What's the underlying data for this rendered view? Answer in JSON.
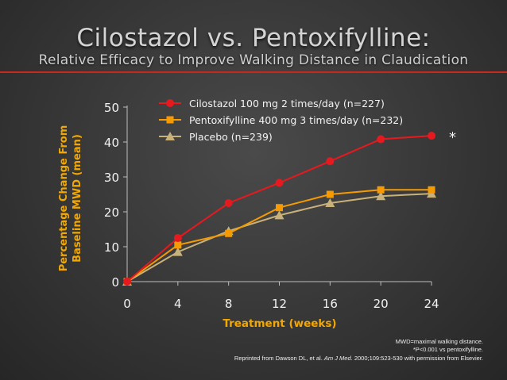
{
  "slide": {
    "title": "Cilostazol vs. Pentoxifylline:",
    "subtitle": "Relative Efficacy to Improve Walking Distance in Claudication",
    "footnote_line1": "MWD=maximal walking distance.",
    "footnote_line2": "*P<0.001 vs pentoxifylline.",
    "citation_pre": "Reprinted from Dawson DL, et al. ",
    "citation_journal": "Am J Med.",
    "citation_post": " 2000;109:523-530 with permission from Elsevier."
  },
  "colors": {
    "cilostazol": "#e8191e",
    "pentoxifylline": "#f59a00",
    "placebo": "#c9b27a",
    "axis_text": "#f2f2f2",
    "label_text": "#f2a800"
  },
  "chart_data": {
    "type": "line",
    "xlabel": "Treatment (weeks)",
    "ylabel_line1": "Percentage Change From",
    "ylabel_line2": "Baseline MWD (mean)",
    "xlim": [
      0,
      24
    ],
    "ylim": [
      0,
      50
    ],
    "xticks": [
      0,
      4,
      8,
      12,
      16,
      20,
      24
    ],
    "yticks": [
      0,
      10,
      20,
      30,
      40,
      50
    ],
    "grid": false,
    "legend_position": "top",
    "series": [
      {
        "name": "Cilostazol 100 mg 2 times/day (n=227)",
        "marker": "circle",
        "x": [
          0,
          4,
          8,
          12,
          16,
          20,
          24
        ],
        "y": [
          0,
          12.5,
          22.5,
          28.3,
          34.5,
          40.8,
          41.8
        ]
      },
      {
        "name": "Pentoxifylline 400 mg 3 times/day (n=232)",
        "marker": "square",
        "x": [
          0,
          4,
          8,
          12,
          16,
          20,
          24
        ],
        "y": [
          0,
          10.5,
          13.8,
          21.2,
          25.0,
          26.3,
          26.3
        ]
      },
      {
        "name": "Placebo (n=239)",
        "marker": "triangle",
        "x": [
          0,
          4,
          8,
          12,
          16,
          20,
          24
        ],
        "y": [
          0,
          8.5,
          14.5,
          19.0,
          22.5,
          24.5,
          25.2
        ]
      }
    ],
    "annotations": [
      {
        "text": "*",
        "x": 24,
        "y": 41.8
      }
    ]
  }
}
